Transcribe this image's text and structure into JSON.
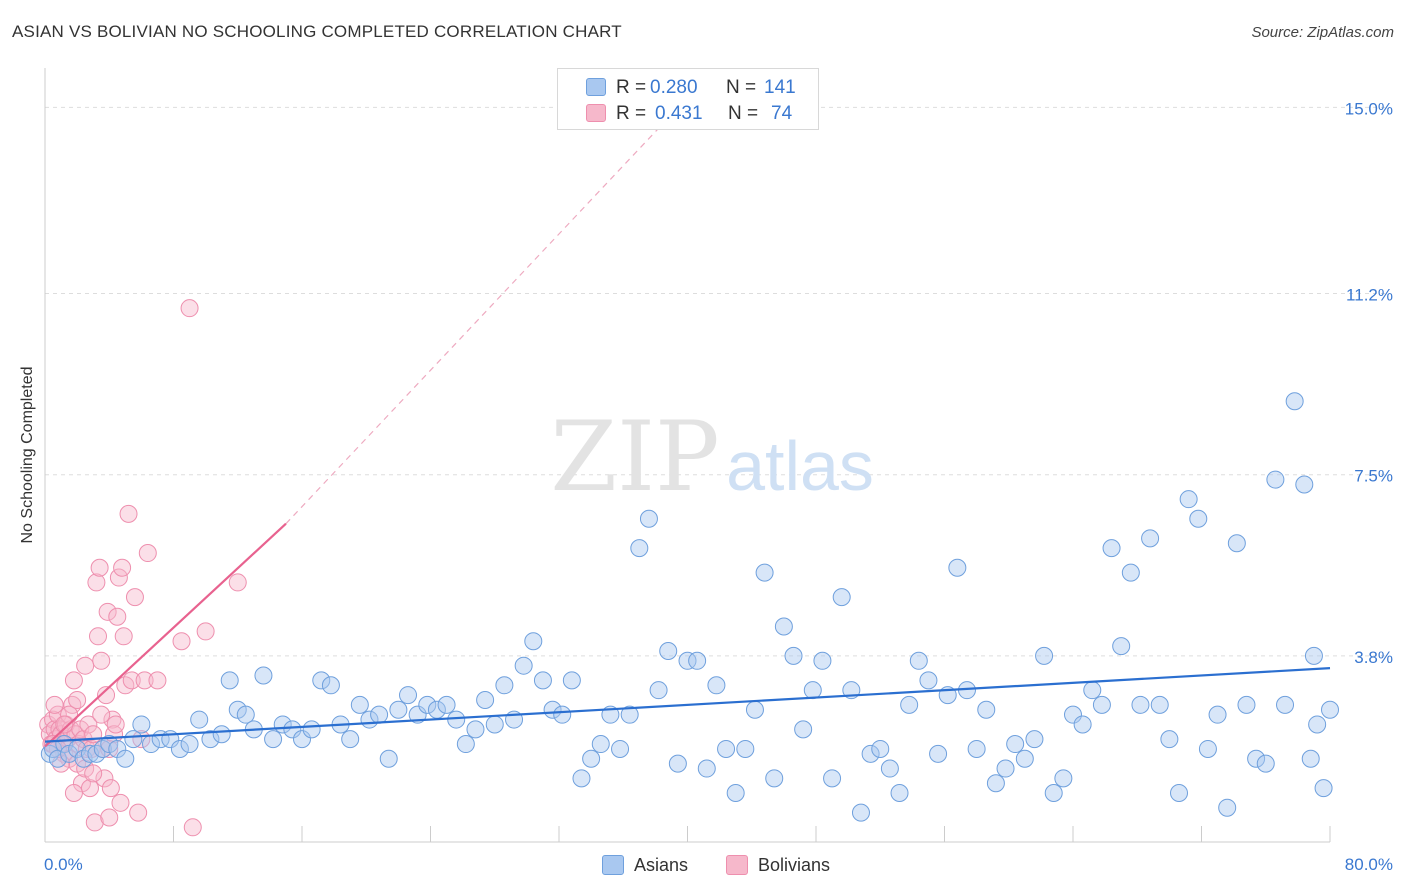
{
  "header": {
    "title": "ASIAN VS BOLIVIAN NO SCHOOLING COMPLETED CORRELATION CHART",
    "source": "Source: ZipAtlas.com"
  },
  "watermark": {
    "zip": "ZIP",
    "atlas": "atlas"
  },
  "legend_top": {
    "rows": [
      {
        "r_label": "R = ",
        "r_value": "0.280",
        "n_label": "N = ",
        "n_value": "141",
        "color": "#a9c8f0"
      },
      {
        "r_label": "R = ",
        "r_value": "0.431",
        "n_label": "N = ",
        "n_value": "74",
        "color": "#f6b8cb"
      }
    ]
  },
  "legend_bottom": {
    "items": [
      "Asians",
      "Bolivians"
    ]
  },
  "colors": {
    "asian_fill": "#a9c8f0",
    "asian_stroke": "#6fa0dd",
    "asian_line": "#2b6fd0",
    "bolivian_fill": "#f6b8cb",
    "bolivian_stroke": "#ee8fae",
    "bolivian_line": "#e8628f",
    "tick_label": "#3a78d0",
    "grid": "#dddddd"
  },
  "chart_data": {
    "type": "scatter",
    "title": "ASIAN VS BOLIVIAN NO SCHOOLING COMPLETED CORRELATION CHART",
    "xlabel": "",
    "ylabel": "No Schooling Completed",
    "xlim": [
      0,
      80
    ],
    "ylim": [
      0,
      15.6
    ],
    "x_tick_labels": [
      "0.0%",
      "80.0%"
    ],
    "y_ticks": [
      3.8,
      7.5,
      11.2,
      15.0
    ],
    "y_tick_labels": [
      "3.8%",
      "7.5%",
      "11.2%",
      "15.0%"
    ],
    "grid": true,
    "legend_position": "top-center",
    "series": [
      {
        "name": "Asians",
        "r": 0.28,
        "n": 141,
        "trend": {
          "x": [
            0,
            80
          ],
          "y": [
            2.05,
            3.55
          ]
        },
        "points": [
          [
            0.3,
            1.8
          ],
          [
            0.5,
            1.9
          ],
          [
            0.8,
            1.7
          ],
          [
            1.2,
            2.0
          ],
          [
            1.5,
            1.8
          ],
          [
            2.0,
            1.9
          ],
          [
            2.4,
            1.7
          ],
          [
            2.8,
            1.8
          ],
          [
            3.2,
            1.8
          ],
          [
            3.6,
            1.9
          ],
          [
            4.0,
            2.0
          ],
          [
            4.5,
            1.9
          ],
          [
            5.0,
            1.7
          ],
          [
            5.5,
            2.1
          ],
          [
            6.0,
            2.4
          ],
          [
            6.6,
            2.0
          ],
          [
            7.2,
            2.1
          ],
          [
            7.8,
            2.1
          ],
          [
            8.4,
            1.9
          ],
          [
            9.0,
            2.0
          ],
          [
            9.6,
            2.5
          ],
          [
            10.3,
            2.1
          ],
          [
            11.0,
            2.2
          ],
          [
            11.5,
            3.3
          ],
          [
            12.0,
            2.7
          ],
          [
            12.5,
            2.6
          ],
          [
            13.0,
            2.3
          ],
          [
            13.6,
            3.4
          ],
          [
            14.2,
            2.1
          ],
          [
            14.8,
            2.4
          ],
          [
            15.4,
            2.3
          ],
          [
            16.0,
            2.1
          ],
          [
            16.6,
            2.3
          ],
          [
            17.2,
            3.3
          ],
          [
            17.8,
            3.2
          ],
          [
            18.4,
            2.4
          ],
          [
            19.0,
            2.1
          ],
          [
            19.6,
            2.8
          ],
          [
            20.2,
            2.5
          ],
          [
            20.8,
            2.6
          ],
          [
            21.4,
            1.7
          ],
          [
            22.0,
            2.7
          ],
          [
            22.6,
            3.0
          ],
          [
            23.2,
            2.6
          ],
          [
            23.8,
            2.8
          ],
          [
            24.4,
            2.7
          ],
          [
            25.0,
            2.8
          ],
          [
            25.6,
            2.5
          ],
          [
            26.2,
            2.0
          ],
          [
            26.8,
            2.3
          ],
          [
            27.4,
            2.9
          ],
          [
            28.0,
            2.4
          ],
          [
            28.6,
            3.2
          ],
          [
            29.2,
            2.5
          ],
          [
            29.8,
            3.6
          ],
          [
            30.4,
            4.1
          ],
          [
            31.0,
            3.3
          ],
          [
            31.6,
            2.7
          ],
          [
            32.2,
            2.6
          ],
          [
            32.8,
            3.3
          ],
          [
            33.4,
            1.3
          ],
          [
            34.0,
            1.7
          ],
          [
            34.6,
            2.0
          ],
          [
            35.2,
            2.6
          ],
          [
            35.8,
            1.9
          ],
          [
            36.4,
            2.6
          ],
          [
            37.0,
            6.0
          ],
          [
            37.6,
            6.6
          ],
          [
            38.2,
            3.1
          ],
          [
            38.8,
            3.9
          ],
          [
            39.4,
            1.6
          ],
          [
            40.0,
            3.7
          ],
          [
            40.6,
            3.7
          ],
          [
            41.2,
            1.5
          ],
          [
            41.8,
            3.2
          ],
          [
            42.4,
            1.9
          ],
          [
            43.0,
            1.0
          ],
          [
            43.6,
            1.9
          ],
          [
            44.2,
            2.7
          ],
          [
            44.8,
            5.5
          ],
          [
            45.4,
            1.3
          ],
          [
            46.0,
            4.4
          ],
          [
            46.6,
            3.8
          ],
          [
            47.2,
            2.3
          ],
          [
            47.8,
            3.1
          ],
          [
            48.4,
            3.7
          ],
          [
            49.0,
            1.3
          ],
          [
            49.6,
            5.0
          ],
          [
            50.2,
            3.1
          ],
          [
            50.8,
            0.6
          ],
          [
            51.4,
            1.8
          ],
          [
            52.0,
            1.9
          ],
          [
            52.6,
            1.5
          ],
          [
            53.2,
            1.0
          ],
          [
            53.8,
            2.8
          ],
          [
            54.4,
            3.7
          ],
          [
            55.0,
            3.3
          ],
          [
            55.6,
            1.8
          ],
          [
            56.2,
            3.0
          ],
          [
            56.8,
            5.6
          ],
          [
            57.4,
            3.1
          ],
          [
            58.0,
            1.9
          ],
          [
            58.6,
            2.7
          ],
          [
            59.2,
            1.2
          ],
          [
            59.8,
            1.5
          ],
          [
            60.4,
            2.0
          ],
          [
            61.0,
            1.7
          ],
          [
            61.6,
            2.1
          ],
          [
            62.2,
            3.8
          ],
          [
            62.8,
            1.0
          ],
          [
            63.4,
            1.3
          ],
          [
            64.0,
            2.6
          ],
          [
            64.6,
            2.4
          ],
          [
            65.2,
            3.1
          ],
          [
            65.8,
            2.8
          ],
          [
            66.4,
            6.0
          ],
          [
            67.0,
            4.0
          ],
          [
            67.6,
            5.5
          ],
          [
            68.2,
            2.8
          ],
          [
            68.8,
            6.2
          ],
          [
            69.4,
            2.8
          ],
          [
            70.0,
            2.1
          ],
          [
            70.6,
            1.0
          ],
          [
            71.2,
            7.0
          ],
          [
            71.8,
            6.6
          ],
          [
            72.4,
            1.9
          ],
          [
            73.0,
            2.6
          ],
          [
            73.6,
            0.7
          ],
          [
            74.2,
            6.1
          ],
          [
            74.8,
            2.8
          ],
          [
            75.4,
            1.7
          ],
          [
            76.0,
            1.6
          ],
          [
            76.6,
            7.4
          ],
          [
            77.2,
            2.8
          ],
          [
            77.8,
            9.0
          ],
          [
            78.4,
            7.3
          ],
          [
            78.8,
            1.7
          ],
          [
            79.2,
            2.4
          ],
          [
            79.6,
            1.1
          ],
          [
            80.0,
            2.7
          ],
          [
            79.0,
            3.8
          ]
        ]
      },
      {
        "name": "Bolivians",
        "r": 0.431,
        "n": 74,
        "trend": {
          "x": [
            0,
            15
          ],
          "y": [
            1.95,
            6.5
          ]
        },
        "trend_extended": {
          "x": [
            15,
            40
          ],
          "y": [
            6.5,
            15.2
          ]
        },
        "points": [
          [
            0.2,
            2.4
          ],
          [
            0.3,
            2.2
          ],
          [
            0.4,
            2.0
          ],
          [
            0.5,
            2.5
          ],
          [
            0.6,
            2.3
          ],
          [
            0.7,
            2.1
          ],
          [
            0.8,
            2.6
          ],
          [
            0.9,
            2.3
          ],
          [
            1.0,
            2.2
          ],
          [
            1.1,
            2.0
          ],
          [
            1.2,
            1.8
          ],
          [
            1.3,
            2.4
          ],
          [
            1.4,
            2.1
          ],
          [
            1.5,
            1.7
          ],
          [
            1.6,
            2.3
          ],
          [
            1.7,
            2.8
          ],
          [
            1.8,
            3.3
          ],
          [
            1.9,
            2.2
          ],
          [
            2.0,
            1.6
          ],
          [
            2.1,
            2.0
          ],
          [
            2.2,
            2.3
          ],
          [
            2.3,
            1.2
          ],
          [
            2.4,
            2.1
          ],
          [
            2.5,
            1.5
          ],
          [
            2.6,
            1.9
          ],
          [
            2.7,
            2.4
          ],
          [
            2.8,
            1.1
          ],
          [
            2.9,
            1.9
          ],
          [
            3.0,
            2.2
          ],
          [
            3.1,
            0.4
          ],
          [
            3.2,
            5.3
          ],
          [
            3.3,
            4.2
          ],
          [
            3.4,
            5.6
          ],
          [
            3.5,
            3.7
          ],
          [
            3.6,
            1.9
          ],
          [
            3.7,
            1.3
          ],
          [
            3.8,
            3.0
          ],
          [
            3.9,
            4.7
          ],
          [
            4.0,
            0.5
          ],
          [
            4.1,
            1.1
          ],
          [
            4.2,
            2.5
          ],
          [
            4.3,
            2.2
          ],
          [
            4.4,
            2.4
          ],
          [
            4.5,
            4.6
          ],
          [
            4.6,
            5.4
          ],
          [
            4.7,
            0.8
          ],
          [
            4.8,
            5.6
          ],
          [
            4.9,
            4.2
          ],
          [
            5.0,
            3.2
          ],
          [
            5.2,
            6.7
          ],
          [
            5.4,
            3.3
          ],
          [
            5.6,
            5.0
          ],
          [
            5.8,
            0.6
          ],
          [
            6.0,
            2.1
          ],
          [
            6.2,
            3.3
          ],
          [
            6.4,
            5.9
          ],
          [
            7.0,
            3.3
          ],
          [
            8.5,
            4.1
          ],
          [
            9.0,
            10.9
          ],
          [
            9.2,
            0.3
          ],
          [
            10.0,
            4.3
          ],
          [
            12.0,
            5.3
          ],
          [
            1.0,
            1.6
          ],
          [
            1.5,
            2.6
          ],
          [
            2.0,
            2.9
          ],
          [
            0.5,
            2.0
          ],
          [
            0.8,
            1.9
          ],
          [
            1.2,
            2.4
          ],
          [
            2.5,
            3.6
          ],
          [
            3.0,
            1.4
          ],
          [
            3.5,
            2.6
          ],
          [
            4.0,
            1.9
          ],
          [
            0.6,
            2.8
          ],
          [
            1.8,
            1.0
          ]
        ]
      }
    ]
  }
}
